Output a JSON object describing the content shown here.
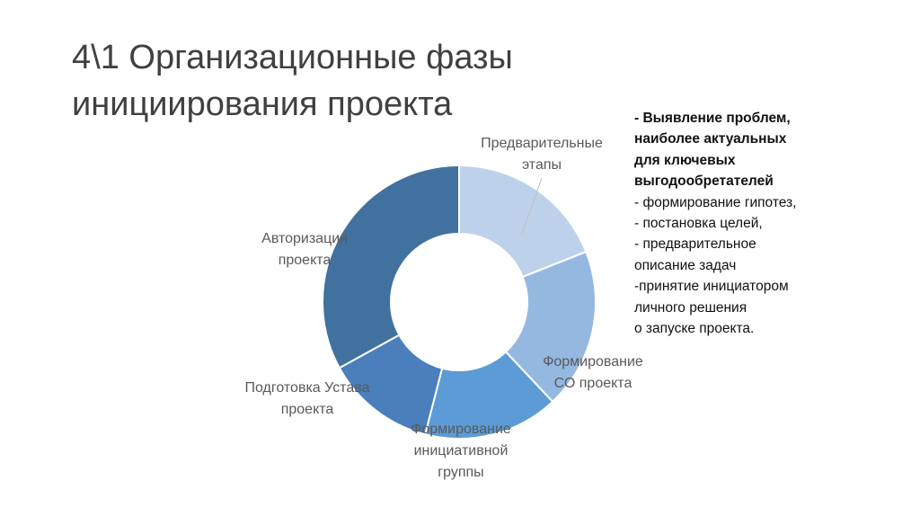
{
  "slide": {
    "title_lines": [
      "4\\1 Организационные фазы",
      "инициирования проекта"
    ]
  },
  "chart_data": {
    "type": "pie",
    "variant": "donut",
    "categories": [
      "Предварительные этапы",
      "Формирование СО проекта",
      "Формирование инициативной группы",
      "Подготовка Устава проекта",
      "Авторизация проекта"
    ],
    "values": [
      19,
      19,
      16,
      13,
      33
    ],
    "colors": [
      "#bdd1ea",
      "#95b8e0",
      "#5c9bd5",
      "#4a7fbc",
      "#41719f"
    ],
    "labels": [
      {
        "lines": [
          "Предварительные",
          "этапы"
        ]
      },
      {
        "lines": [
          "Формирование",
          "СО проекта"
        ]
      },
      {
        "lines": [
          "Формирование",
          "инициативной",
          "группы"
        ]
      },
      {
        "lines": [
          "Подготовка Устава",
          "проекта"
        ]
      },
      {
        "lines": [
          "Авторизация",
          "проекта"
        ]
      }
    ],
    "label_color": "#595959"
  },
  "notes": {
    "lines": [
      {
        "text": "-   Выявление проблем,",
        "bold": true
      },
      {
        "text": "наиболее актуальных",
        "bold": true
      },
      {
        "text": "для ключевых",
        "bold": true
      },
      {
        "text": "выгодообретателей",
        "bold": true
      },
      {
        "text": "- формирование  гипотез,",
        "bold": false
      },
      {
        "text": "- постановка целей,",
        "bold": false
      },
      {
        "text": "- предварительное",
        "bold": false
      },
      {
        "text": "описание задач",
        "bold": false
      },
      {
        "text": "-принятие инициатором",
        "bold": false
      },
      {
        "text": "личного решения",
        "bold": false
      },
      {
        "text": "о запуске проекта.",
        "bold": false
      }
    ]
  }
}
